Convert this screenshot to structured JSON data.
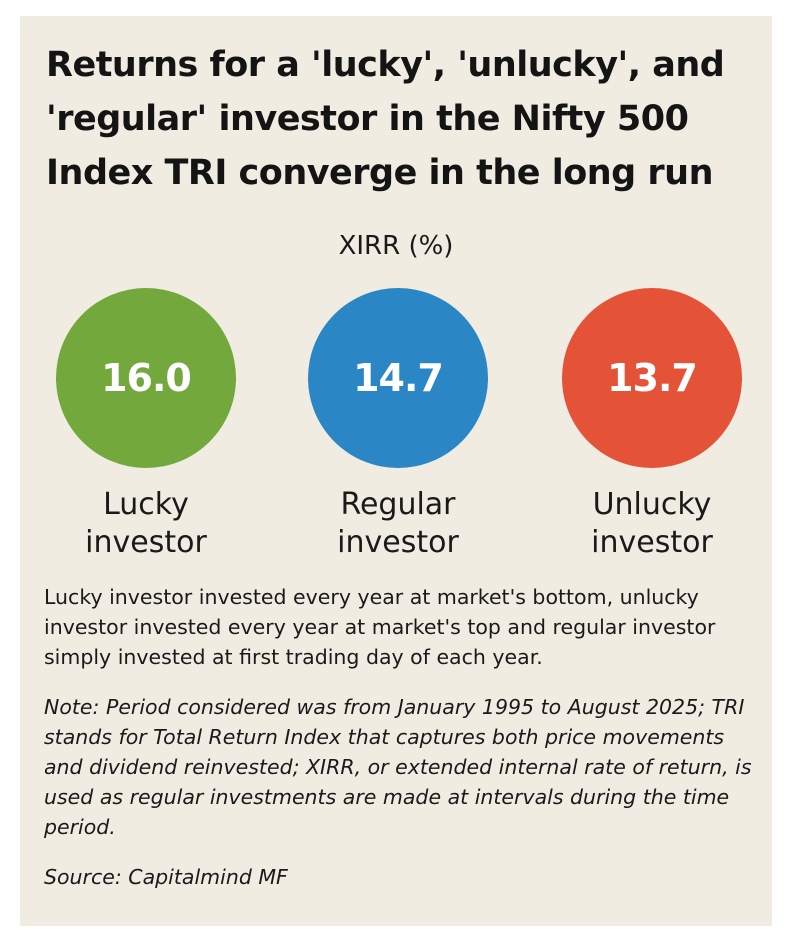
{
  "title": "Returns for a 'lucky', 'unlucky', and 'regular' investor in the Nifty 500 Index TRI converge in the long run",
  "metric_label": "XIRR (%)",
  "chart_data": {
    "type": "bubble",
    "title": "Returns for a 'lucky', 'unlucky', and 'regular' investor in the Nifty 500 Index TRI converge in the long run",
    "ylabel": "XIRR (%)",
    "categories": [
      "Lucky investor",
      "Regular investor",
      "Unlucky investor"
    ],
    "values": [
      16.0,
      14.7,
      13.7
    ],
    "display_values": [
      "16.0",
      "14.7",
      "13.7"
    ],
    "label_lines": [
      [
        "Lucky",
        "investor"
      ],
      [
        "Regular",
        "investor"
      ],
      [
        "Unlucky",
        "investor"
      ]
    ],
    "colors": [
      "#72a83c",
      "#2b86c5",
      "#e45238"
    ]
  },
  "description": "Lucky investor invested every year at market's bottom, unlucky investor invested every year at market's top and regular investor simply invested at first trading day of each year.",
  "note": "Note: Period considered was from January 1995 to August 2025; TRI stands for Total Return Index that captures both price movements and dividend reinvested; XIRR, or extended internal rate of return, is used as regular investments are made at intervals during the time period.",
  "source": "Source: Capitalmind MF"
}
